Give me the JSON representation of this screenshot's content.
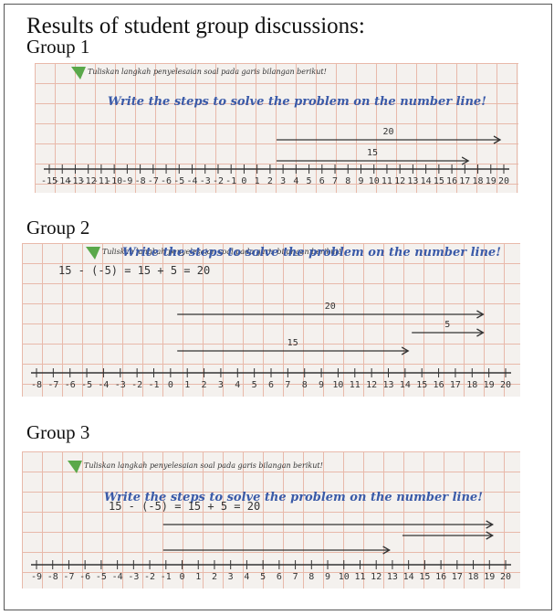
{
  "header": {
    "title": "Results of student group discussions:"
  },
  "groups": [
    {
      "label": "Group 1",
      "worksheet": {
        "instruction_id": "Tuliskan langkah penyelesaian soal pada garis bilangan berikut!",
        "instruction_en": "Write the steps to solve the problem on the number line!",
        "arrow_labels": [
          "20",
          "15"
        ],
        "number_line": [
          -15,
          -14,
          -13,
          -12,
          -11,
          -10,
          -9,
          -8,
          -7,
          -6,
          -5,
          -4,
          -3,
          -2,
          -1,
          0,
          1,
          2,
          3,
          4,
          5,
          6,
          7,
          8,
          9,
          10,
          11,
          12,
          13,
          14,
          15,
          16,
          17,
          18,
          19,
          20
        ]
      }
    },
    {
      "label": "Group 2",
      "worksheet": {
        "instruction_id": "Tuliskan langkah penyelesaian soal pada garis bilangan berikut!",
        "instruction_en": "Write the steps to solve the problem on the number line!",
        "equation": "15 - (-5) = 15 + 5 = 20",
        "arrow_labels": [
          "20",
          "5",
          "15"
        ],
        "number_line": [
          -8,
          -7,
          -6,
          -5,
          -4,
          -3,
          -2,
          -1,
          0,
          1,
          2,
          3,
          4,
          5,
          6,
          7,
          8,
          9,
          10,
          11,
          12,
          13,
          14,
          15,
          16,
          17,
          18,
          19,
          20
        ]
      }
    },
    {
      "label": "Group 3",
      "worksheet": {
        "instruction_id": "Tuliskan langkah penyelesaian soal pada garis bilangan berikut!",
        "instruction_en": "Write the steps to solve the problem on the number line!",
        "equation": "15 - (-5) = 15 + 5 = 20",
        "number_line": [
          -9,
          -8,
          -7,
          -6,
          -5,
          -4,
          -3,
          -2,
          -1,
          0,
          1,
          2,
          3,
          4,
          5,
          6,
          7,
          8,
          9,
          10,
          11,
          12,
          13,
          14,
          15,
          16,
          17,
          18,
          19,
          20
        ]
      }
    }
  ]
}
